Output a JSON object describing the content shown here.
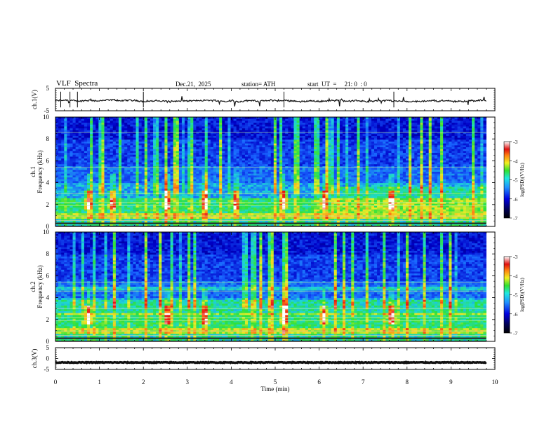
{
  "header": {
    "title": "VLF  Spectra",
    "date": "Dec.21,  2025",
    "station": "station= ATH",
    "start_ut": "start  UT  =     21: 0  : 0"
  },
  "colors": {
    "waveform": "#111111",
    "colormap": [
      "#000040",
      "#0000c8",
      "#1f68ff",
      "#22d8d8",
      "#2fe03a",
      "#f0ec2a",
      "#ff7a10",
      "#ee1010",
      "#ffffff"
    ]
  },
  "chart_data": [
    {
      "type": "line",
      "id": "ch1-waveform",
      "ylabel": "ch.1(V)",
      "ylim": [
        -5,
        5
      ],
      "yticks": [
        "5",
        "-5"
      ],
      "xlim": [
        0,
        10
      ],
      "baseline": -0.6
    },
    {
      "type": "heatmap",
      "id": "ch1-spectrogram",
      "ylabel": "ch.1\nFrequency  (kHz)",
      "ylabel_lines": [
        "ch.1",
        "Frequency  (kHz)"
      ],
      "ylim": [
        0,
        10
      ],
      "yticks": [
        "0",
        "2",
        "4",
        "6",
        "8",
        "10"
      ],
      "xlim": [
        0,
        10
      ],
      "colorbar": {
        "label": "log(PSD)(V²/Hz)",
        "range": [
          -7,
          -3
        ],
        "ticks": [
          "-3",
          "-4",
          "-5",
          "-6",
          "-7"
        ]
      },
      "sferic_bursts_min": [
        0.75,
        1.3,
        2.55,
        3.4,
        4.1,
        5.2,
        6.1,
        7.65
      ]
    },
    {
      "type": "heatmap",
      "id": "ch2-spectrogram",
      "ylabel": "ch.2\nFrequency  (kHz)",
      "ylabel_lines": [
        "ch.2",
        "Frequency  (kHz)"
      ],
      "ylim": [
        0,
        10
      ],
      "yticks": [
        "0",
        "2",
        "4",
        "6",
        "8",
        "10"
      ],
      "xlim": [
        0,
        10
      ],
      "colorbar": {
        "label": "log(PSD)(V²/Hz)",
        "range": [
          -7,
          -3
        ],
        "ticks": [
          "-3",
          "-4",
          "-5",
          "-6",
          "-7"
        ]
      },
      "sferic_bursts_min": [
        0.75,
        2.55,
        3.4,
        5.2,
        6.1,
        7.65
      ]
    },
    {
      "type": "line",
      "id": "ch3-waveform",
      "ylabel": "ch.3(V)",
      "ylim": [
        -5,
        5
      ],
      "yticks": [
        "5",
        "0",
        "-5"
      ],
      "xlim": [
        0,
        10
      ],
      "baseline": -1.8
    }
  ],
  "xaxis": {
    "label": "Time  (min)",
    "range": [
      0,
      10
    ],
    "ticks": [
      "0",
      "1",
      "2",
      "3",
      "4",
      "5",
      "6",
      "7",
      "8",
      "9",
      "10"
    ]
  }
}
